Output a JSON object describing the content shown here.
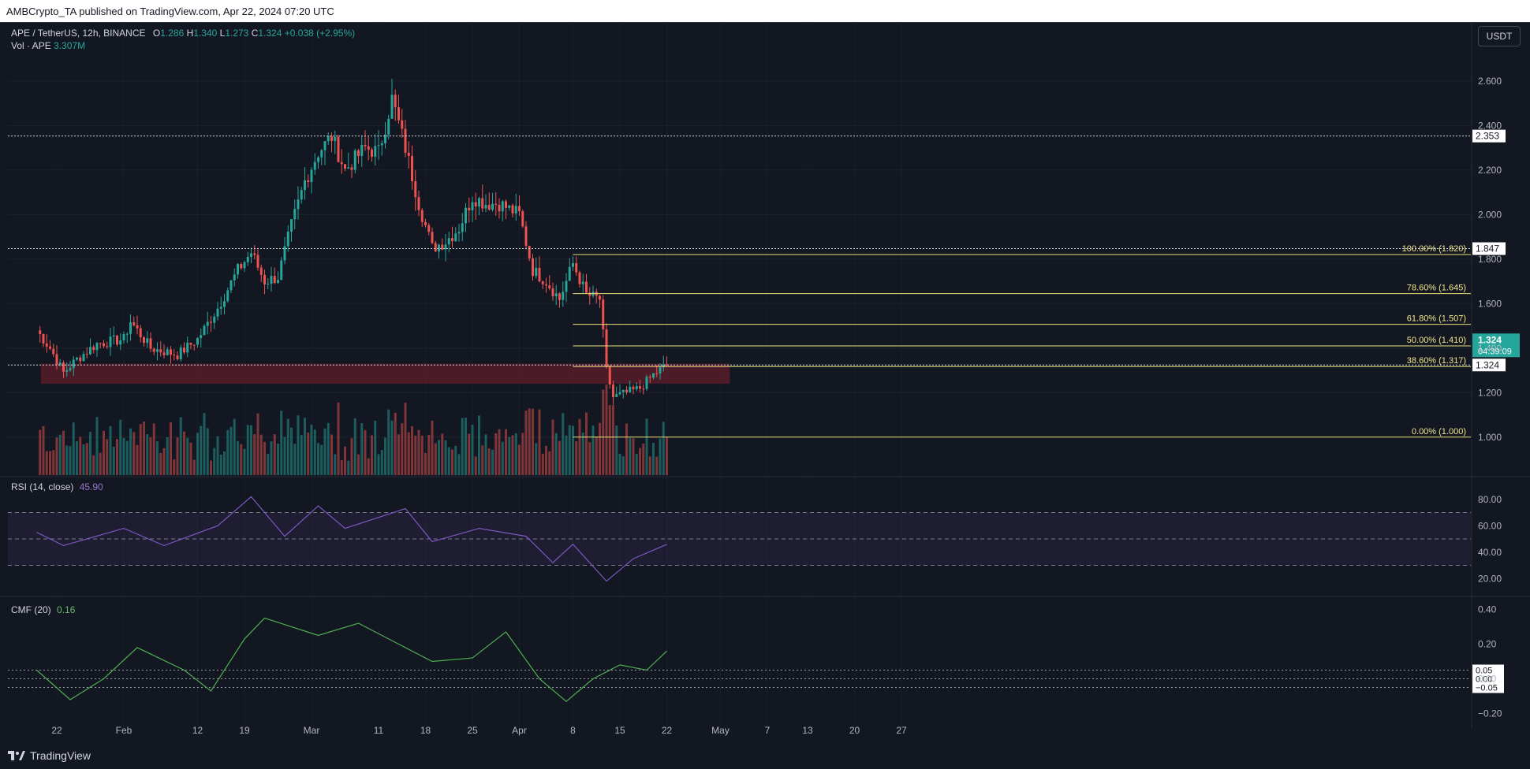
{
  "header": {
    "published": "AMBCrypto_TA published on TradingView.com, Apr 22, 2024 07:20 UTC"
  },
  "legend": {
    "symbol": "APE / TetherUS, 12h, BINANCE",
    "o_label": "O",
    "o_value": "1.286",
    "h_label": "H",
    "h_value": "1.340",
    "l_label": "L",
    "l_value": "1.273",
    "c_label": "C",
    "c_value": "1.324",
    "change": "+0.038 (+2.95%)",
    "vol_label": "Vol · APE",
    "vol_value": "3.307M"
  },
  "quote_currency": "USDT",
  "rsi_legend": {
    "label": "RSI (14, close)",
    "value": "45.90"
  },
  "cmf_legend": {
    "label": "CMF (20)",
    "value": "0.16"
  },
  "footer": {
    "brand": "TradingView"
  },
  "colors": {
    "bg": "#131722",
    "up": "#26a69a",
    "down": "#ef5350",
    "fib": "#e8e07a",
    "rsi": "#7e57c2",
    "cmf": "#4caf50",
    "zone": "#7a1f2b"
  },
  "chart_data": [
    {
      "type": "candlestick",
      "title": "APE / TetherUS, 12h, BINANCE",
      "x_tick_labels": [
        "22",
        "Feb",
        "12",
        "19",
        "Mar",
        "11",
        "18",
        "25",
        "Apr",
        "8",
        "15",
        "22",
        "May",
        "7",
        "13",
        "20",
        "27"
      ],
      "y_ticks": [
        "2.600",
        "2.400",
        "2.200",
        "2.000",
        "1.800",
        "1.600",
        "1.400",
        "1.200",
        "1.000"
      ],
      "ylim": [
        0.9,
        2.72
      ],
      "horizontal_levels": [
        {
          "label": "2.353",
          "value": 2.353
        },
        {
          "label": "1.847",
          "value": 1.847
        },
        {
          "label": "1.324",
          "value": 1.324
        }
      ],
      "fibonacci": [
        {
          "label": "100.00% (1.820)",
          "value": 1.82
        },
        {
          "label": "78.60% (1.645)",
          "value": 1.645
        },
        {
          "label": "61.80% (1.507)",
          "value": 1.507
        },
        {
          "label": "50.00% (1.410)",
          "value": 1.41
        },
        {
          "label": "38.60% (1.317)",
          "value": 1.317
        },
        {
          "label": "0.00% (1.000)",
          "value": 1.0
        }
      ],
      "support_zone": {
        "low": 1.24,
        "high": 1.33
      },
      "last_price": {
        "value": "1.324",
        "countdown": "04:39:09"
      },
      "close_path": [
        {
          "d": "Jan 19",
          "c": 1.48
        },
        {
          "d": "Jan 21",
          "c": 1.4
        },
        {
          "d": "Jan 23",
          "c": 1.29
        },
        {
          "d": "Jan 25",
          "c": 1.35
        },
        {
          "d": "Jan 28",
          "c": 1.42
        },
        {
          "d": "Feb 1",
          "c": 1.44
        },
        {
          "d": "Feb 2",
          "c": 1.52
        },
        {
          "d": "Feb 5",
          "c": 1.4
        },
        {
          "d": "Feb 9",
          "c": 1.37
        },
        {
          "d": "Feb 12",
          "c": 1.44
        },
        {
          "d": "Feb 15",
          "c": 1.58
        },
        {
          "d": "Feb 18",
          "c": 1.75
        },
        {
          "d": "Feb 20",
          "c": 1.83
        },
        {
          "d": "Feb 22",
          "c": 1.7
        },
        {
          "d": "Feb 24",
          "c": 1.72
        },
        {
          "d": "Feb 26",
          "c": 1.95
        },
        {
          "d": "Feb 28",
          "c": 2.15
        },
        {
          "d": "Mar 1",
          "c": 2.28
        },
        {
          "d": "Mar 3",
          "c": 2.35
        },
        {
          "d": "Mar 5",
          "c": 2.2
        },
        {
          "d": "Mar 8",
          "c": 2.3
        },
        {
          "d": "Mar 10",
          "c": 2.28
        },
        {
          "d": "Mar 12",
          "c": 2.52
        },
        {
          "d": "Mar 14",
          "c": 2.3
        },
        {
          "d": "Mar 16",
          "c": 2.05
        },
        {
          "d": "Mar 18",
          "c": 1.85
        },
        {
          "d": "Mar 20",
          "c": 1.88
        },
        {
          "d": "Mar 22",
          "c": 1.94
        },
        {
          "d": "Mar 24",
          "c": 2.08
        },
        {
          "d": "Mar 26",
          "c": 2.05
        },
        {
          "d": "Mar 28",
          "c": 2.05
        },
        {
          "d": "Mar 31",
          "c": 2.0
        },
        {
          "d": "Apr 2",
          "c": 1.75
        },
        {
          "d": "Apr 4",
          "c": 1.7
        },
        {
          "d": "Apr 6",
          "c": 1.62
        },
        {
          "d": "Apr 8",
          "c": 1.78
        },
        {
          "d": "Apr 10",
          "c": 1.64
        },
        {
          "d": "Apr 12",
          "c": 1.62
        },
        {
          "d": "Apr 13",
          "c": 1.3
        },
        {
          "d": "Apr 14",
          "c": 1.18
        },
        {
          "d": "Apr 16",
          "c": 1.2
        },
        {
          "d": "Apr 18",
          "c": 1.22
        },
        {
          "d": "Apr 20",
          "c": 1.28
        },
        {
          "d": "Apr 22",
          "c": 1.324
        }
      ],
      "volume_legend": "Vol · APE 3.307M"
    },
    {
      "type": "line",
      "title": "RSI (14, close)",
      "current": 45.9,
      "y_ticks": [
        "80.00",
        "60.00",
        "40.00",
        "20.00"
      ],
      "ylim": [
        10,
        90
      ],
      "band": [
        30,
        70
      ],
      "midline": 50,
      "x": [
        "Jan 19",
        "Jan 23",
        "Feb 1",
        "Feb 7",
        "Feb 15",
        "Feb 20",
        "Feb 25",
        "Mar 1",
        "Mar 5",
        "Mar 11",
        "Mar 14",
        "Mar 18",
        "Mar 25",
        "Apr 1",
        "Apr 5",
        "Apr 8",
        "Apr 13",
        "Apr 17",
        "Apr 22"
      ],
      "values": [
        55,
        45,
        58,
        45,
        60,
        82,
        52,
        75,
        58,
        68,
        73,
        48,
        58,
        52,
        32,
        46,
        18,
        35,
        45.9
      ]
    },
    {
      "type": "line",
      "title": "CMF (20)",
      "current": 0.16,
      "y_ticks": [
        "0.40",
        "0.20",
        "0.00",
        "−0.20"
      ],
      "ylim": [
        -0.22,
        0.42
      ],
      "reference_lines": [
        {
          "label": "0.05",
          "value": 0.05
        },
        {
          "label": "0.00",
          "value": 0.0
        },
        {
          "label": "−0.05",
          "value": -0.05
        }
      ],
      "x": [
        "Jan 19",
        "Jan 24",
        "Jan 29",
        "Feb 3",
        "Feb 10",
        "Feb 14",
        "Feb 19",
        "Feb 22",
        "Mar 1",
        "Mar 7",
        "Mar 13",
        "Mar 18",
        "Mar 24",
        "Mar 29",
        "Apr 3",
        "Apr 7",
        "Apr 11",
        "Apr 15",
        "Apr 19",
        "Apr 22"
      ],
      "values": [
        0.05,
        -0.12,
        0.0,
        0.18,
        0.05,
        -0.07,
        0.23,
        0.35,
        0.25,
        0.32,
        0.2,
        0.1,
        0.12,
        0.27,
        0.0,
        -0.13,
        0.0,
        0.08,
        0.05,
        0.16
      ]
    }
  ]
}
